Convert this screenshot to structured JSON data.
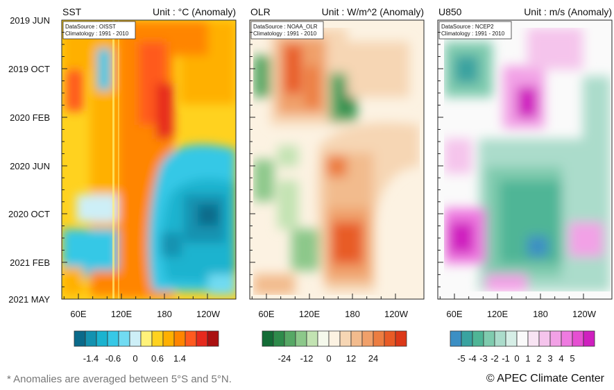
{
  "chart_data": {
    "type": "heatmap",
    "time_labels": [
      "2019 JUN",
      "2019 OCT",
      "2020 FEB",
      "2020 JUN",
      "2020 OCT",
      "2021 FEB",
      "2021 MAY"
    ],
    "lon_labels": [
      "60E",
      "120E",
      "180",
      "120W"
    ],
    "panels": [
      {
        "id": "sst",
        "title": "SST",
        "unit": "Unit : °C (Anomaly)",
        "datasource": "DataSource : OISST",
        "climatology": "Climatology : 1991 - 2010",
        "colors": [
          "#0a6a8a",
          "#1392b0",
          "#1bb3cf",
          "#36c8e6",
          "#71dbf2",
          "#cdeff7",
          "#fff27a",
          "#ffd21f",
          "#ffb000",
          "#ff8500",
          "#ff5a1f",
          "#e62a1d",
          "#aa1010"
        ],
        "tick_labels": [
          "-1.4",
          "-0.6",
          "0",
          "0.6",
          "1.4"
        ],
        "tick_positions": [
          1.5,
          3.5,
          5.5,
          7.5,
          9.5
        ]
      },
      {
        "id": "olr",
        "title": "OLR",
        "unit": "Unit : W/m^2 (Anomaly)",
        "datasource": "DataSource : NOAA_OLR",
        "climatology": "Climatology : 1991 - 2010",
        "colors": [
          "#136c36",
          "#2e8b4b",
          "#56a865",
          "#8cc88a",
          "#c2e3b2",
          "#f5f9ec",
          "#fcf2e2",
          "#f6d6b4",
          "#f2bb8d",
          "#f0a06a",
          "#ec7d41",
          "#e85b26",
          "#dc3818"
        ],
        "tick_labels": [
          "-24",
          "-12",
          "0",
          "12",
          "24"
        ],
        "tick_positions": [
          2,
          4,
          6,
          8,
          10
        ]
      },
      {
        "id": "u850",
        "title": "U850",
        "unit": "Unit : m/s (Anomaly)",
        "datasource": "DataSource : NCEP2",
        "climatology": "Climatology : 1991 - 2010",
        "colors": [
          "#3c8fc4",
          "#3aa3a0",
          "#4fb596",
          "#7fcbae",
          "#abdccb",
          "#d6eee6",
          "#fafafa",
          "#f8e4f3",
          "#f5c4ec",
          "#f2a1e6",
          "#ee7ae0",
          "#e64fd2",
          "#cf1fbf"
        ],
        "tick_labels": [
          "-5",
          "-4",
          "-3",
          "-2",
          "-1",
          "0",
          "1",
          "2",
          "3",
          "4",
          "5"
        ],
        "tick_positions": [
          1,
          2,
          3,
          4,
          5,
          6,
          7,
          8,
          9,
          10,
          11
        ]
      }
    ]
  },
  "footnote": "* Anomalies are averaged between 5°S and 5°N.",
  "copyright": "© APEC Climate Center"
}
